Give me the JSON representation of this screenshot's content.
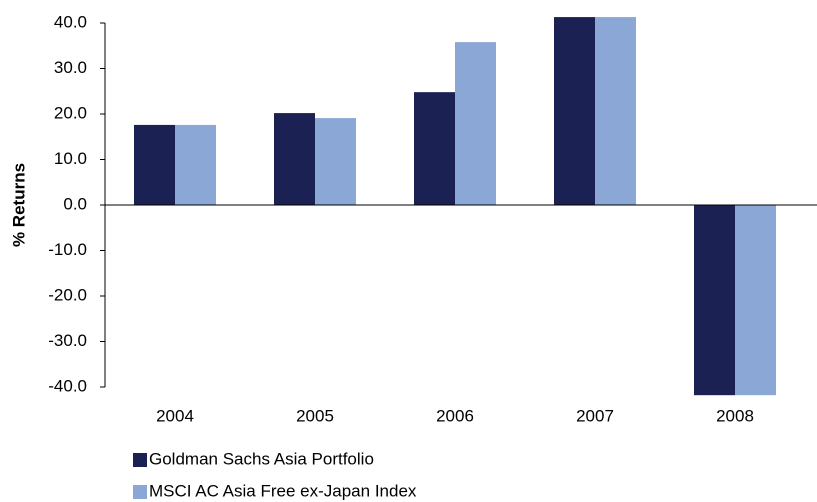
{
  "chart_data": {
    "type": "bar",
    "y_axis_label": "% Returns",
    "categories": [
      "2004",
      "2005",
      "2006",
      "2007",
      "2008"
    ],
    "series": [
      {
        "name": "Goldman Sachs Asia Portfolio",
        "color": "#1b2152",
        "values": [
          17.6,
          20.2,
          24.8,
          41.3,
          -41.8
        ]
      },
      {
        "name": "MSCI AC Asia Free ex-Japan Index",
        "color": "#8ba7d5",
        "values": [
          17.6,
          19.1,
          35.8,
          41.3,
          -41.8
        ]
      }
    ],
    "ylim": [
      -40,
      40
    ],
    "yticks": [
      {
        "value": -40,
        "label": "-40.0"
      },
      {
        "value": -30,
        "label": "-30.0"
      },
      {
        "value": -20,
        "label": "-20.0"
      },
      {
        "value": -10,
        "label": "-10.0"
      },
      {
        "value": 0,
        "label": "0.0"
      },
      {
        "value": 10,
        "label": "10.0"
      },
      {
        "value": 20,
        "label": "20.0"
      },
      {
        "value": 30,
        "label": "30.0"
      },
      {
        "value": 40,
        "label": "40.0"
      }
    ],
    "grid": false,
    "legend": "bottom"
  }
}
